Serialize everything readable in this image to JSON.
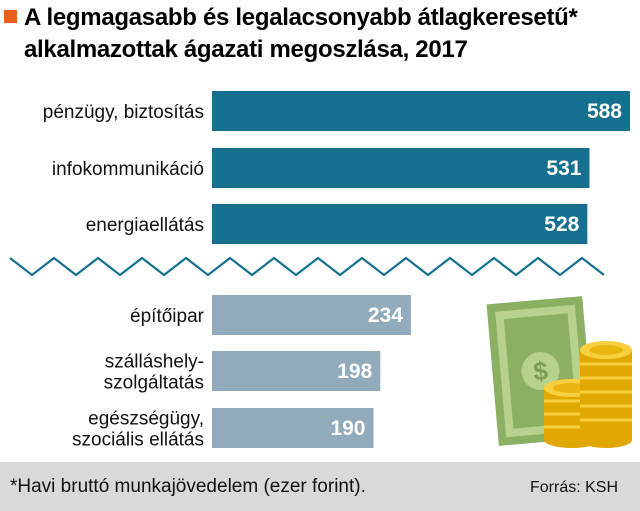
{
  "header": {
    "title_line1": "A legmagasabb és legalacsonyabb átlagkeresetű*",
    "title_line2": "alkalmazottak ágazati megoszlása, 2017",
    "marker_color": "#e8601c"
  },
  "footer": {
    "footnote": "*Havi bruttó munkajövedelem (ezer forint).",
    "source": "Forrás: KSH"
  },
  "chart_data": {
    "type": "bar",
    "orientation": "horizontal",
    "axis_break": true,
    "groups": [
      {
        "group": "highest",
        "color": "#15708f",
        "categories": [
          [
            "pénzügy, biztosítás"
          ],
          [
            "infokommunikáció"
          ],
          [
            "energiaellátás"
          ]
        ],
        "values": [
          588,
          531,
          528
        ]
      },
      {
        "group": "lowest",
        "color": "#92abbc",
        "categories": [
          [
            "építőipar"
          ],
          [
            "szálláshely-",
            "szolgáltatás"
          ],
          [
            "egészségügy,",
            "szociális ellátás"
          ]
        ],
        "values": [
          234,
          198,
          190
        ]
      }
    ],
    "grid": false,
    "legend": "none",
    "decoration": "money-icon"
  }
}
